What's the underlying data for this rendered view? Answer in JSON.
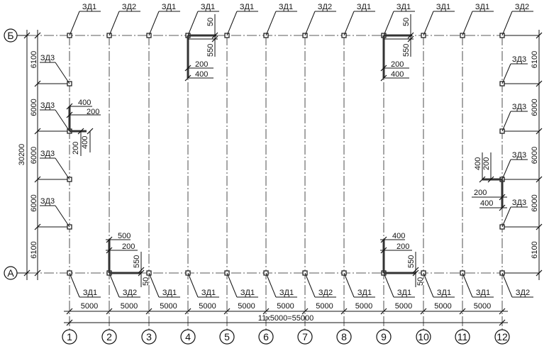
{
  "axes": {
    "columns": [
      "1",
      "2",
      "3",
      "4",
      "5",
      "6",
      "7",
      "8",
      "9",
      "10",
      "11",
      "12"
    ],
    "rows": [
      "Б",
      "А"
    ]
  },
  "top_marks": [
    "ЗД1",
    "ЗД2",
    "ЗД1",
    "ЗД1",
    "ЗД1",
    "ЗД1",
    "ЗД2",
    "ЗД1",
    "ЗД1",
    "ЗД1",
    "ЗД1",
    "ЗД2"
  ],
  "bottom_marks": [
    "ЗД1",
    "ЗД2",
    "ЗД1",
    "ЗД1",
    "ЗД1",
    "ЗД1",
    "ЗД2",
    "ЗД1",
    "ЗД1",
    "ЗД1",
    "ЗД1",
    "ЗД2"
  ],
  "side_marks": {
    "left": [
      "ЗД3",
      "ЗД3",
      "ЗД3",
      "ЗД3"
    ],
    "right": [
      "ЗД3",
      "ЗД3",
      "ЗД3",
      "ЗД3"
    ]
  },
  "dimensions": {
    "bay_spans": [
      "5000",
      "5000",
      "5000",
      "5000",
      "5000",
      "5000",
      "5000",
      "5000",
      "5000",
      "5000",
      "5000"
    ],
    "total_length": "11x5000=55000",
    "row_spans": [
      "6100",
      "6000",
      "6000",
      "6000",
      "6100"
    ],
    "total_width": "30200"
  },
  "details": {
    "left_col1": [
      "400",
      "200",
      "200",
      "400"
    ],
    "top_col4": [
      "50",
      "550",
      "200",
      "400"
    ],
    "top_col9": [
      "50",
      "550",
      "200",
      "400"
    ],
    "bottom_col2": [
      "500",
      "200",
      "550",
      "50"
    ],
    "bottom_col9": [
      "400",
      "200",
      "550",
      "50"
    ],
    "right_col12": [
      "400",
      "200",
      "200",
      "400"
    ]
  }
}
